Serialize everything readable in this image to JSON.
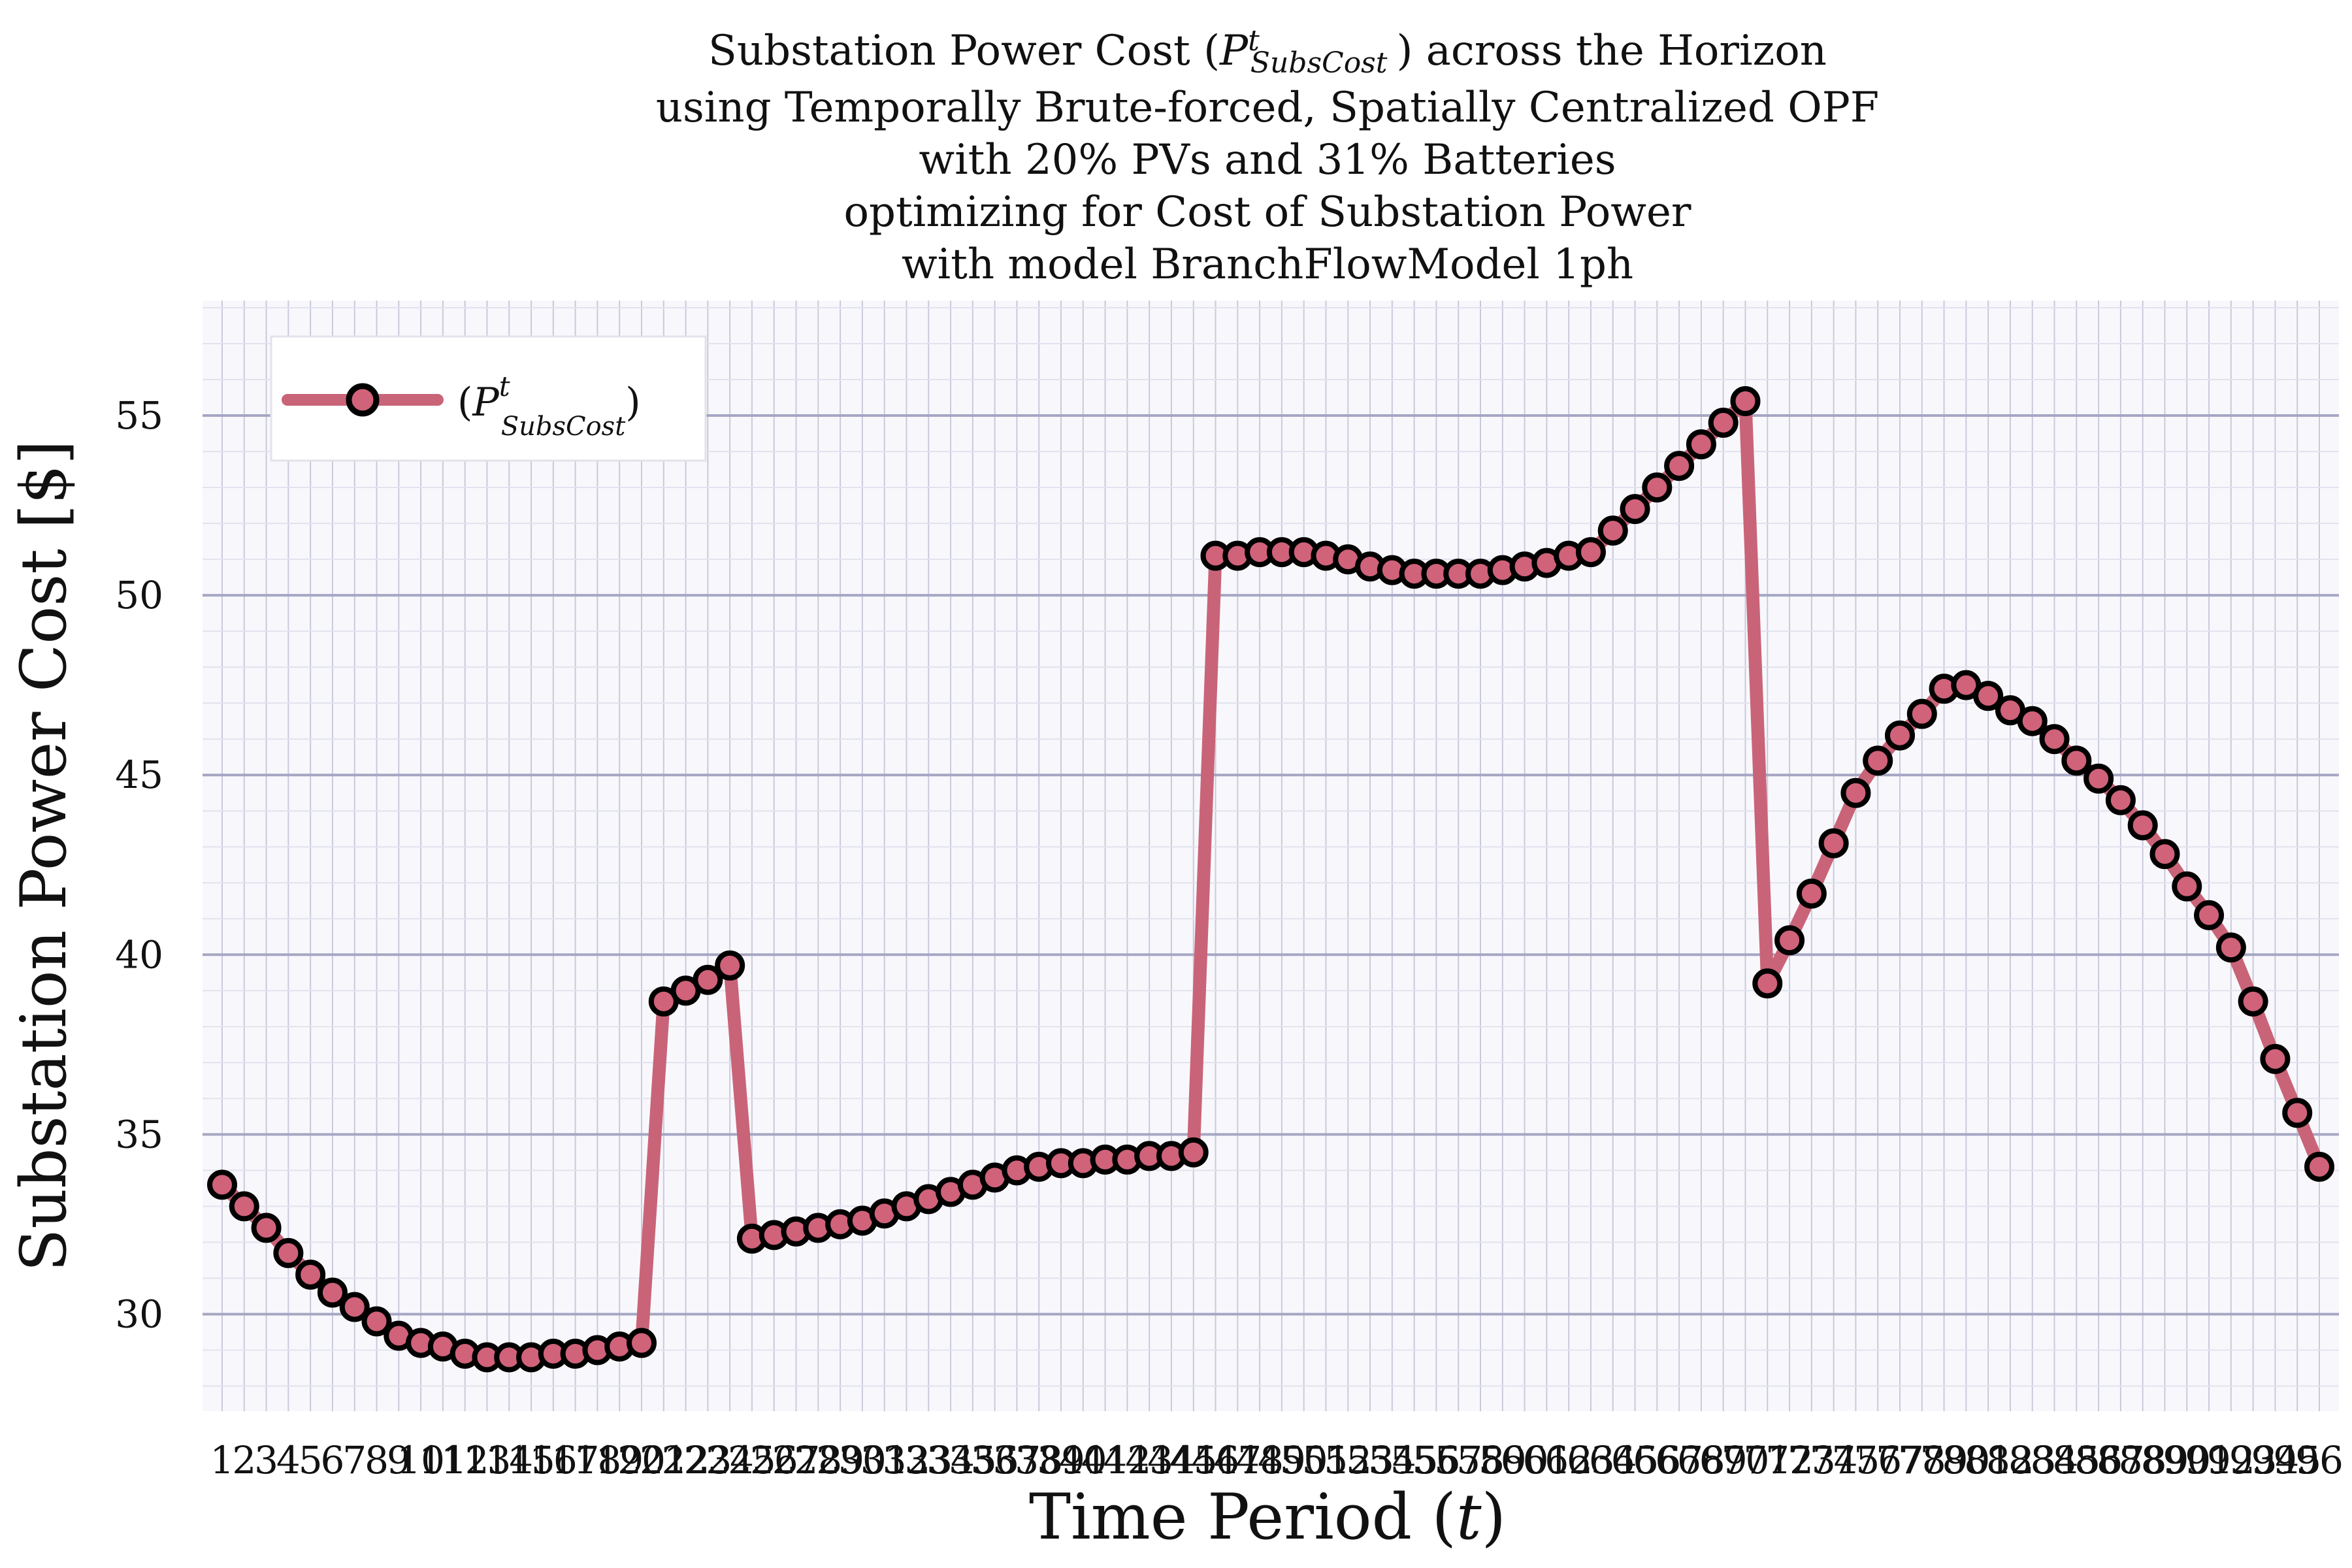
{
  "chart_data": {
    "type": "line",
    "title_lines": [
      "Substation Power Cost (P^t_SubsCost) across the Horizon",
      "using Temporally Brute-forced, Spatially Centralized OPF",
      "with 20% PVs and 31% Batteries",
      "optimizing for Cost of Substation Power",
      "with model BranchFlowModel 1ph"
    ],
    "xlabel": "Time Period (t)",
    "ylabel": "Substation Power Cost [$]",
    "ylim": [
      27.3,
      58.2
    ],
    "yticks": [
      30,
      35,
      40,
      45,
      50,
      55
    ],
    "grid": true,
    "legend_position": "top-left",
    "series": [
      {
        "name": "(P^t_SubsCost)",
        "color": "#c96478",
        "marker_fill": "#d0627a",
        "marker_edge": "#000000",
        "x": [
          1,
          2,
          3,
          4,
          5,
          6,
          7,
          8,
          9,
          10,
          11,
          12,
          13,
          14,
          15,
          16,
          17,
          18,
          19,
          20,
          21,
          22,
          23,
          24,
          25,
          26,
          27,
          28,
          29,
          30,
          31,
          32,
          33,
          34,
          35,
          36,
          37,
          38,
          39,
          40,
          41,
          42,
          43,
          44,
          45,
          46,
          47,
          48,
          49,
          50,
          51,
          52,
          53,
          54,
          55,
          56,
          57,
          58,
          59,
          60,
          61,
          62,
          63,
          64,
          65,
          66,
          67,
          68,
          69,
          70,
          71,
          72,
          73,
          74,
          75,
          76,
          77,
          78,
          79,
          80,
          81,
          82,
          83,
          84,
          85,
          86,
          87,
          88,
          89,
          90,
          91,
          92,
          93,
          94,
          95,
          96
        ],
        "values": [
          33.6,
          33.0,
          32.4,
          31.7,
          31.1,
          30.6,
          30.2,
          29.8,
          29.4,
          29.2,
          29.1,
          28.9,
          28.8,
          28.8,
          28.8,
          28.9,
          28.9,
          29.0,
          29.1,
          29.2,
          38.7,
          39.0,
          39.3,
          39.7,
          32.1,
          32.2,
          32.3,
          32.4,
          32.5,
          32.6,
          32.8,
          33.0,
          33.2,
          33.4,
          33.6,
          33.8,
          34.0,
          34.1,
          34.2,
          34.2,
          34.3,
          34.3,
          34.4,
          34.4,
          34.5,
          51.1,
          51.1,
          51.2,
          51.2,
          51.2,
          51.1,
          51.0,
          50.8,
          50.7,
          50.6,
          50.6,
          50.6,
          50.6,
          50.7,
          50.8,
          50.9,
          51.1,
          51.2,
          51.8,
          52.4,
          53.0,
          53.6,
          54.2,
          54.8,
          55.4,
          39.2,
          40.4,
          41.7,
          43.1,
          44.5,
          45.4,
          46.1,
          46.7,
          47.4,
          47.5,
          47.2,
          46.8,
          46.5,
          46.0,
          45.4,
          44.9,
          44.3,
          43.6,
          42.8,
          41.9,
          41.1,
          40.2,
          38.7,
          37.1,
          35.6,
          34.1
        ]
      }
    ]
  }
}
